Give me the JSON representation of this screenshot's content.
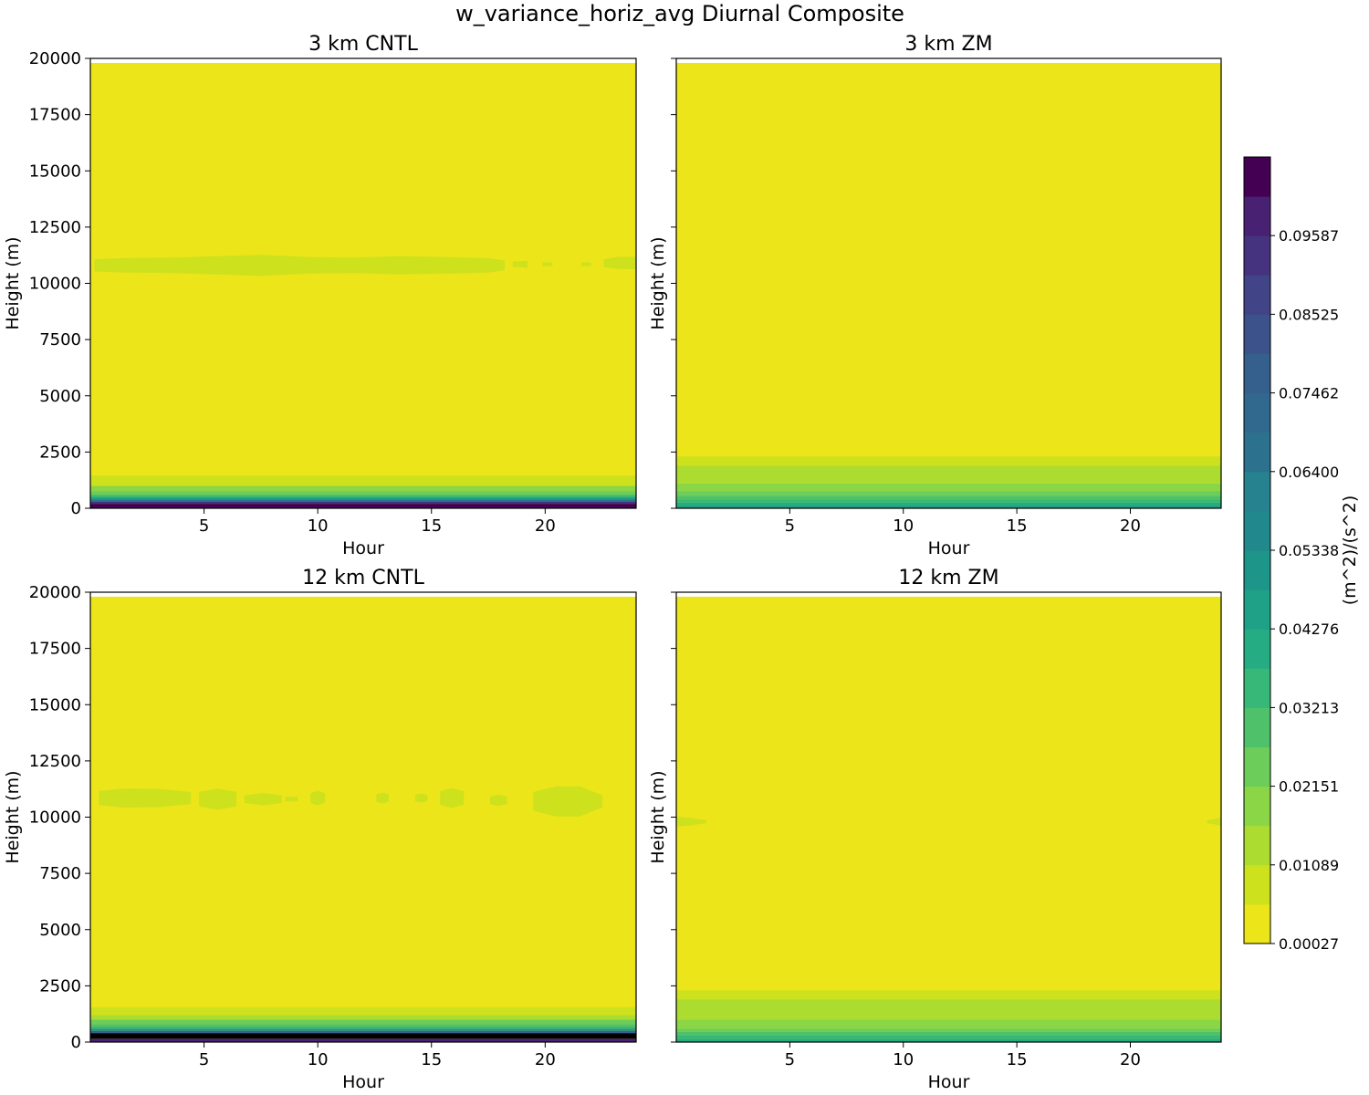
{
  "figure": {
    "title": "w_variance_horiz_avg Diurnal Composite"
  },
  "chart_data": {
    "type": "heatmap",
    "panels": [
      {
        "title": "3 km CNTL",
        "xlabel": "Hour",
        "ylabel": "Height (m)",
        "xlim": [
          0,
          24
        ],
        "ylim": [
          0,
          20000
        ],
        "xticks": [
          5,
          10,
          15,
          20
        ],
        "yticks": [
          0,
          2500,
          5000,
          7500,
          10000,
          12500,
          15000,
          17500,
          20000
        ],
        "data_top": 19800,
        "background_level": 0,
        "layers": [
          {
            "bottom": 0,
            "top": 200,
            "level": 19
          },
          {
            "bottom": 200,
            "top": 300,
            "level": 17
          },
          {
            "bottom": 300,
            "top": 400,
            "level": 12
          },
          {
            "bottom": 400,
            "top": 500,
            "level": 8
          },
          {
            "bottom": 500,
            "top": 600,
            "level": 6
          },
          {
            "bottom": 600,
            "top": 750,
            "level": 4
          },
          {
            "bottom": 750,
            "top": 1000,
            "level": 3
          },
          {
            "bottom": 1000,
            "top": 1450,
            "level": 1
          }
        ],
        "blobs": [
          {
            "hours": [
              0.2,
              1.5,
              3.5,
              5.5,
              7.5,
              9.5,
              11.5,
              13.5,
              15.5,
              17.5,
              18.2
            ],
            "center": 10800,
            "half_thickness": [
              250,
              300,
              320,
              380,
              450,
              350,
              320,
              380,
              350,
              300,
              200
            ],
            "level": 1
          },
          {
            "hours": [
              18.6,
              19.2
            ],
            "center": 10850,
            "half_thickness": [
              100,
              130
            ],
            "level": 1
          },
          {
            "hours": [
              19.9,
              20.3
            ],
            "center": 10850,
            "half_thickness": [
              60,
              60
            ],
            "level": 1
          },
          {
            "hours": [
              21.6,
              22.0
            ],
            "center": 10850,
            "half_thickness": [
              60,
              60
            ],
            "level": 1
          },
          {
            "hours": [
              22.6,
              23.2,
              24.0
            ],
            "center": 10900,
            "half_thickness": [
              150,
              250,
              250
            ],
            "level": 1
          }
        ]
      },
      {
        "title": "3 km ZM",
        "xlabel": "Hour",
        "ylabel": "Height (m)",
        "xlim": [
          0,
          24
        ],
        "ylim": [
          0,
          20000
        ],
        "xticks": [
          5,
          10,
          15,
          20
        ],
        "yticks": [
          0,
          2500,
          5000,
          7500,
          10000,
          12500,
          15000,
          17500,
          20000
        ],
        "data_top": 19800,
        "background_level": 0,
        "layers": [
          {
            "bottom": 0,
            "top": 120,
            "level": 8
          },
          {
            "bottom": 120,
            "top": 250,
            "level": 7
          },
          {
            "bottom": 250,
            "top": 400,
            "level": 6
          },
          {
            "bottom": 400,
            "top": 550,
            "level": 5
          },
          {
            "bottom": 550,
            "top": 750,
            "level": 4
          },
          {
            "bottom": 750,
            "top": 1100,
            "level": 3
          },
          {
            "bottom": 1100,
            "top": 1900,
            "level": 2
          },
          {
            "bottom": 1900,
            "top": 2300,
            "level": 1
          }
        ],
        "blobs": []
      },
      {
        "title": "12 km CNTL",
        "xlabel": "Hour",
        "ylabel": "Height (m)",
        "xlim": [
          0,
          24
        ],
        "ylim": [
          0,
          20000
        ],
        "xticks": [
          5,
          10,
          15,
          20
        ],
        "yticks": [
          0,
          2500,
          5000,
          7500,
          10000,
          12500,
          15000,
          17500,
          20000
        ],
        "data_top": 19800,
        "background_level": 0,
        "layers": [
          {
            "bottom": 0,
            "top": 150,
            "level": 18
          },
          {
            "bottom": 150,
            "top": 400,
            "level": 20
          },
          {
            "bottom": 400,
            "top": 500,
            "level": 14
          },
          {
            "bottom": 500,
            "top": 600,
            "level": 9
          },
          {
            "bottom": 600,
            "top": 700,
            "level": 6
          },
          {
            "bottom": 700,
            "top": 800,
            "level": 5
          },
          {
            "bottom": 800,
            "top": 1000,
            "level": 4
          },
          {
            "bottom": 1000,
            "top": 1200,
            "level": 2
          },
          {
            "bottom": 1200,
            "top": 1550,
            "level": 1
          }
        ],
        "blobs": [
          {
            "hours": [
              0.4,
              1.5,
              3.0,
              4.4
            ],
            "center": 10850,
            "half_thickness": [
              300,
              400,
              380,
              250
            ],
            "level": 1
          },
          {
            "hours": [
              4.8,
              5.6,
              6.4
            ],
            "center": 10800,
            "half_thickness": [
              300,
              450,
              300
            ],
            "level": 1
          },
          {
            "hours": [
              6.8,
              7.6,
              8.4
            ],
            "center": 10800,
            "half_thickness": [
              150,
              250,
              150
            ],
            "level": 1
          },
          {
            "hours": [
              8.6,
              9.1
            ],
            "center": 10800,
            "half_thickness": [
              80,
              80
            ],
            "level": 1
          },
          {
            "hours": [
              9.7,
              10.0,
              10.3
            ],
            "center": 10850,
            "half_thickness": [
              200,
              300,
              200
            ],
            "level": 1
          },
          {
            "hours": [
              12.6,
              12.85,
              13.1
            ],
            "center": 10850,
            "half_thickness": [
              150,
              220,
              150
            ],
            "level": 1
          },
          {
            "hours": [
              14.3,
              14.55,
              14.8
            ],
            "center": 10850,
            "half_thickness": [
              120,
              180,
              120
            ],
            "level": 1
          },
          {
            "hours": [
              15.4,
              15.9,
              16.4
            ],
            "center": 10850,
            "half_thickness": [
              280,
              420,
              280
            ],
            "level": 1
          },
          {
            "hours": [
              17.6,
              17.95,
              18.3
            ],
            "center": 10750,
            "half_thickness": [
              150,
              230,
              150
            ],
            "level": 1
          },
          {
            "hours": [
              19.5,
              20.5,
              21.5,
              22.5
            ],
            "center": 10700,
            "half_thickness": [
              400,
              650,
              650,
              250
            ],
            "level": 1
          }
        ]
      },
      {
        "title": "12 km ZM",
        "xlabel": "Hour",
        "ylabel": "Height (m)",
        "xlim": [
          0,
          24
        ],
        "ylim": [
          0,
          20000
        ],
        "xticks": [
          5,
          10,
          15,
          20
        ],
        "yticks": [
          0,
          2500,
          5000,
          7500,
          10000,
          12500,
          15000,
          17500,
          20000
        ],
        "data_top": 19800,
        "background_level": 0,
        "layers": [
          {
            "bottom": 0,
            "top": 150,
            "level": 7
          },
          {
            "bottom": 150,
            "top": 300,
            "level": 6
          },
          {
            "bottom": 300,
            "top": 450,
            "level": 5
          },
          {
            "bottom": 450,
            "top": 600,
            "level": 4
          },
          {
            "bottom": 600,
            "top": 1000,
            "level": 3
          },
          {
            "bottom": 1000,
            "top": 1900,
            "level": 2
          },
          {
            "bottom": 1900,
            "top": 2300,
            "level": 1
          }
        ],
        "blobs": [
          {
            "hours": [
              0.0,
              0.6,
              1.3
            ],
            "center": 9800,
            "half_thickness": [
              200,
              150,
              50
            ],
            "level": 1
          },
          {
            "hours": [
              23.4,
              23.7,
              24.0
            ],
            "center": 9800,
            "half_thickness": [
              50,
              100,
              150
            ],
            "level": 1
          }
        ]
      }
    ],
    "colorbar": {
      "label": "(m^2)/(s^2)",
      "min": 0.00027,
      "max": 0.10119,
      "n_levels": 19,
      "tick_labels": [
        "0.00027",
        "0.01089",
        "0.02151",
        "0.03213",
        "0.04276",
        "0.05338",
        "0.06400",
        "0.07462",
        "0.08525",
        "0.09587"
      ],
      "colors": [
        "#ebe51a",
        "#cde11d",
        "#addc30",
        "#8bd646",
        "#6ccd5a",
        "#4fc16b",
        "#37b878",
        "#25ac82",
        "#1fa187",
        "#1e9589",
        "#21888d",
        "#26828e",
        "#2c728e",
        "#31688e",
        "#355f8d",
        "#3b528b",
        "#414487",
        "#46337f",
        "#482173",
        "#440154"
      ]
    }
  }
}
